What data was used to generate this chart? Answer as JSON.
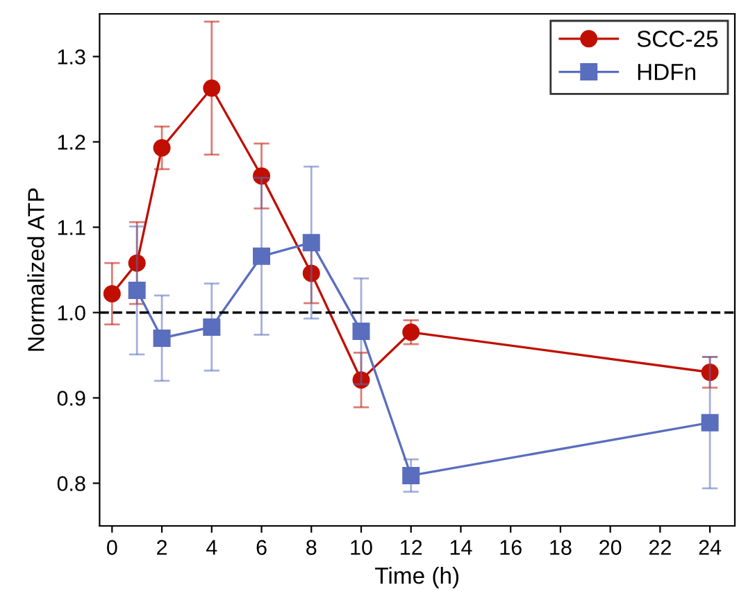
{
  "chart_data": {
    "type": "line",
    "xlabel": "Time (h)",
    "ylabel": "Normalized ATP",
    "xlim": [
      -0.5,
      25
    ],
    "xticks": [
      0,
      2,
      4,
      6,
      8,
      10,
      12,
      14,
      16,
      18,
      20,
      22,
      24
    ],
    "ylim": [
      0.75,
      1.35
    ],
    "yticks": [
      0.8,
      0.9,
      {
        "value": 1,
        "label": "1.0"
      },
      1.1,
      1.2,
      1.3
    ],
    "grid": false,
    "legend": "top right",
    "ref_lines": [
      {
        "axis": "y",
        "value": 1.0,
        "color": "#000000",
        "line_style": "dashed"
      }
    ],
    "series": [
      {
        "name": "SCC-25",
        "color": "#c00f00",
        "marker": "circle",
        "x": [
          0,
          1,
          2,
          4,
          6,
          8,
          10,
          12,
          24
        ],
        "values": [
          1.022,
          1.058,
          1.193,
          1.263,
          1.16,
          1.046,
          0.921,
          0.977,
          0.93
        ],
        "errors": [
          0.036,
          0.048,
          0.025,
          0.078,
          0.038,
          0.035,
          0.032,
          0.014,
          0.018
        ]
      },
      {
        "name": "HDFn",
        "color": "#5a6ebe",
        "marker": "square",
        "x": [
          1,
          2,
          4,
          6,
          8,
          10,
          12,
          24
        ],
        "values": [
          1.026,
          0.97,
          0.983,
          1.066,
          1.082,
          0.978,
          0.809,
          0.871
        ],
        "errors": [
          0.075,
          0.05,
          0.051,
          0.092,
          0.089,
          0.062,
          0.019,
          0.077
        ]
      }
    ]
  }
}
